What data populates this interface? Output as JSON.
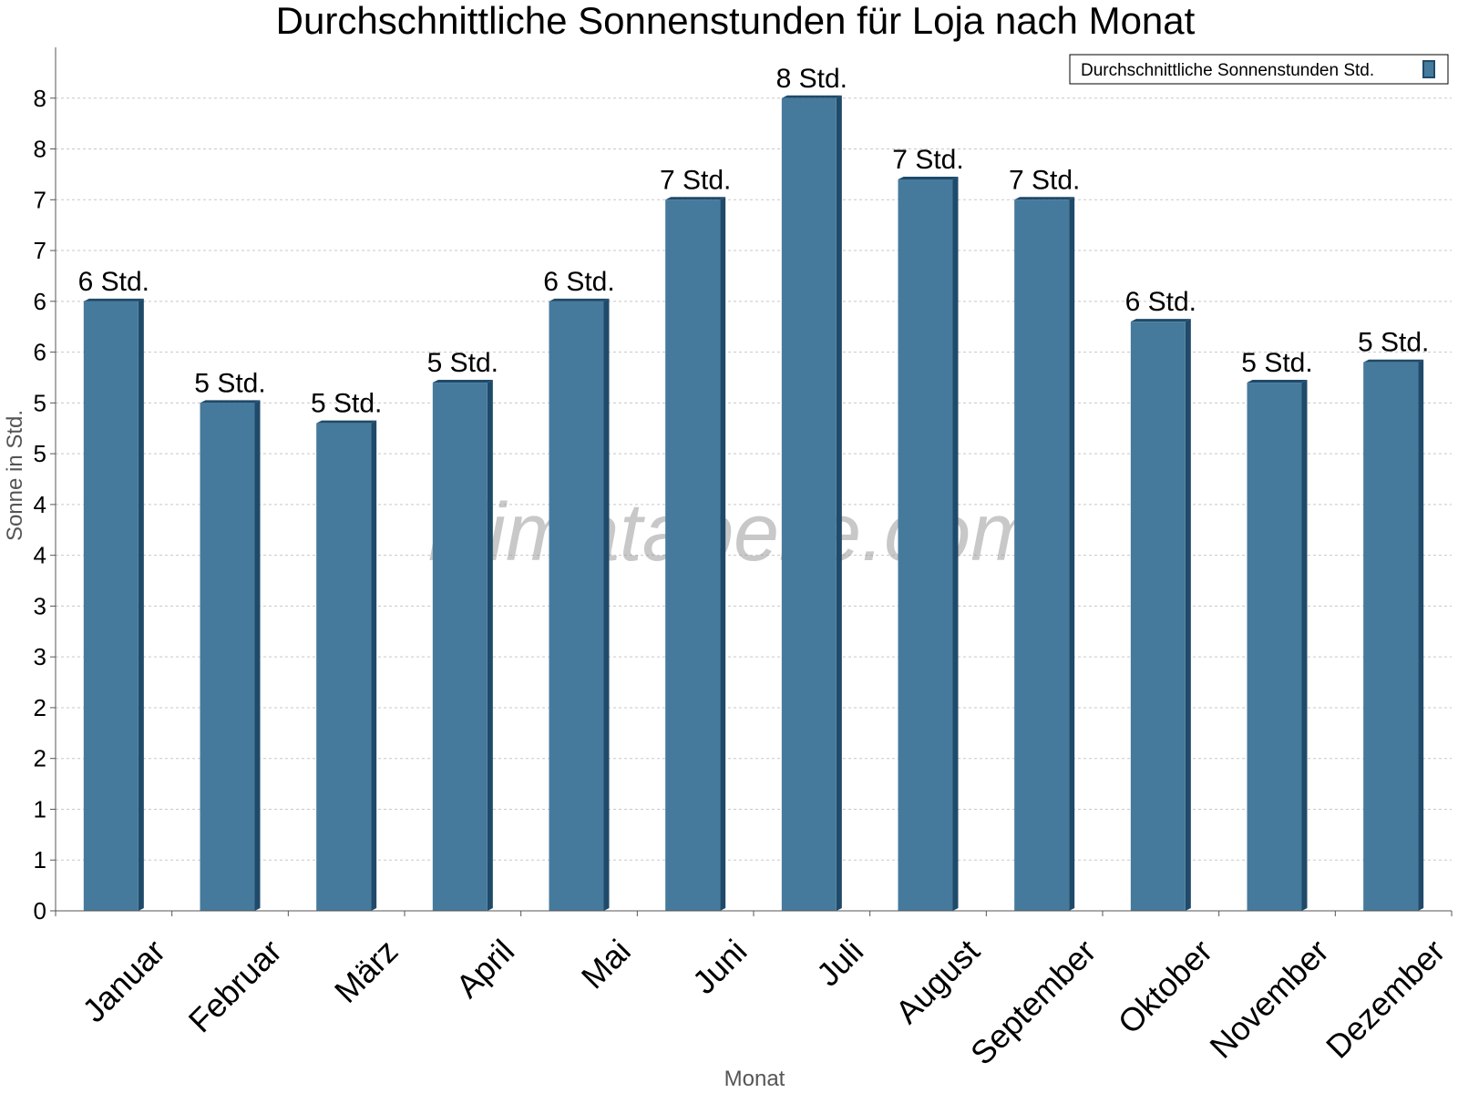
{
  "chart_data": {
    "type": "bar",
    "title": "Durchschnittliche Sonnenstunden für Loja nach Monat",
    "xlabel": "Monat",
    "ylabel": "Sonne in Std.",
    "categories": [
      "Januar",
      "Februar",
      "März",
      "April",
      "Mai",
      "Juni",
      "Juli",
      "August",
      "September",
      "Oktober",
      "November",
      "Dezember"
    ],
    "series": [
      {
        "name": "Durchschnittliche Sonnenstunden Std.",
        "values": [
          6.0,
          5.0,
          4.8,
          5.2,
          6.0,
          7.0,
          8.0,
          7.2,
          7.0,
          5.8,
          5.2,
          5.4
        ],
        "labels": [
          "6 Std.",
          "5 Std.",
          "5 Std.",
          "5 Std.",
          "6 Std.",
          "7 Std.",
          "8 Std.",
          "7 Std.",
          "7 Std.",
          "6 Std.",
          "5 Std.",
          "5 Std."
        ]
      }
    ],
    "ylim": [
      0,
      8.5
    ],
    "yticks": [
      {
        "value": 0,
        "label": "0"
      },
      {
        "value": 0.5,
        "label": "1"
      },
      {
        "value": 1.0,
        "label": "1"
      },
      {
        "value": 1.5,
        "label": "2"
      },
      {
        "value": 2.0,
        "label": "2"
      },
      {
        "value": 2.5,
        "label": "3"
      },
      {
        "value": 3.0,
        "label": "3"
      },
      {
        "value": 3.5,
        "label": "4"
      },
      {
        "value": 4.0,
        "label": "4"
      },
      {
        "value": 4.5,
        "label": "5"
      },
      {
        "value": 5.0,
        "label": "5"
      },
      {
        "value": 5.5,
        "label": "6"
      },
      {
        "value": 6.0,
        "label": "6"
      },
      {
        "value": 6.5,
        "label": "7"
      },
      {
        "value": 7.0,
        "label": "7"
      },
      {
        "value": 7.5,
        "label": "8"
      },
      {
        "value": 8.0,
        "label": "8"
      }
    ],
    "grid": true,
    "legend_position": "top-right",
    "bar_color": "#467a9c",
    "bar_side_color": "#1f4a6a",
    "watermark": "klimatabelle.com"
  }
}
